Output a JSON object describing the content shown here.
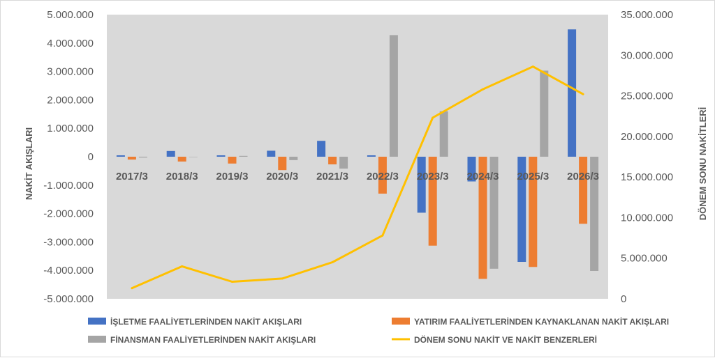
{
  "chart_data": {
    "type": "bar",
    "categories": [
      "2017/3",
      "2018/3",
      "2019/3",
      "2020/3",
      "2021/3",
      "2022/3",
      "2023/3",
      "2024/3",
      "2025/3",
      "2026/3"
    ],
    "series": [
      {
        "name": "İŞLETME FAALİYETLERİNDEN NAKİT AKIŞLARI",
        "type": "bar",
        "axis": "left",
        "color": "#4472c4",
        "values": [
          50000,
          200000,
          50000,
          210000,
          560000,
          50000,
          -1970000,
          -870000,
          -3700000,
          4480000
        ]
      },
      {
        "name": "YATIRIM FAALİYETLERİNDEN KAYNAKLANAN NAKİT AKIŞLARI",
        "type": "bar",
        "axis": "left",
        "color": "#ed7d31",
        "values": [
          -100000,
          -170000,
          -240000,
          -470000,
          -270000,
          -1300000,
          -3130000,
          -4300000,
          -3880000,
          -2360000
        ]
      },
      {
        "name": "FİNANSMAN FAALİYETLERİNDEN NAKİT AKIŞLARI",
        "type": "bar",
        "axis": "left",
        "color": "#a5a5a5",
        "values": [
          -30000,
          0,
          30000,
          -120000,
          -420000,
          4280000,
          1600000,
          -3940000,
          3030000,
          -4020000
        ]
      },
      {
        "name": "DÖNEM SONU NAKİT VE NAKİT BENZERLERİ",
        "type": "line",
        "axis": "right",
        "color": "#ffc000",
        "values": [
          1300000,
          4000000,
          2100000,
          2500000,
          4500000,
          7800000,
          22300000,
          25800000,
          28600000,
          25200000
        ]
      }
    ],
    "ylabel": "NAKİT AKIŞLARI",
    "y2label": "DÖNEM SONU NAKİTLERİ",
    "ylim": [
      -5000000,
      5000000
    ],
    "y2lim": [
      0,
      35000000
    ],
    "yticks": [
      "5.000.000",
      "4.000.000",
      "3.000.000",
      "2.000.000",
      "1.000.000",
      "0",
      "-1.000.000",
      "-2.000.000",
      "-3.000.000",
      "-4.000.000",
      "-5.000.000"
    ],
    "y2ticks": [
      "35.000.000",
      "30.000.000",
      "25.000.000",
      "20.000.000",
      "15.000.000",
      "10.000.000",
      "5.000.000",
      "0"
    ],
    "grid": false,
    "plot_background": "#d9d9d9",
    "legend_position": "bottom"
  }
}
